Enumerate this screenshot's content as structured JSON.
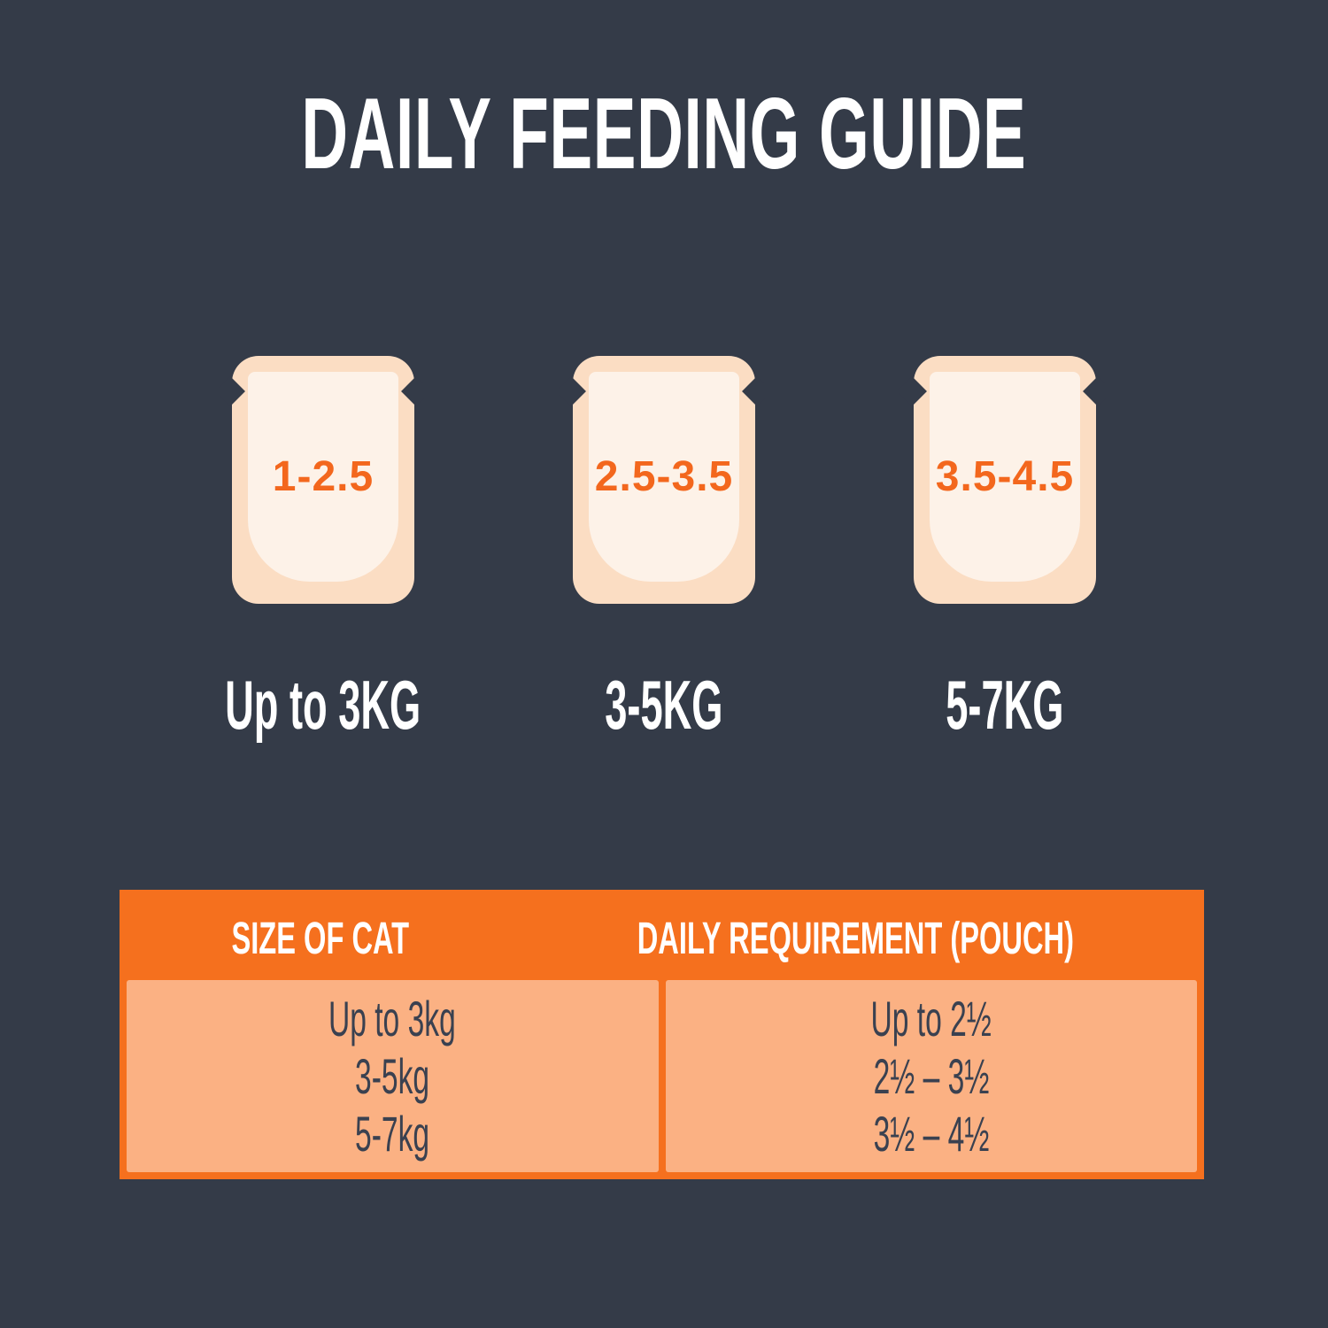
{
  "title": "DAILY FEEDING GUIDE",
  "colors": {
    "background": "#343B48",
    "orange": "#F5701E",
    "salmon": "#FBB183",
    "pouch_outer": "#FBDDC3",
    "pouch_inner": "#FDF2E8",
    "amount_orange": "#F3671D",
    "text_light": "#FFFFFF",
    "text_dark": "#3A4150"
  },
  "chart_data": {
    "type": "table",
    "title": "DAILY FEEDING GUIDE",
    "columns": [
      "SIZE OF CAT",
      "DAILY REQUIREMENT (POUCH)"
    ],
    "rows": [
      [
        "Up to 3kg",
        "Up to 2½"
      ],
      [
        "3-5kg",
        "2½ – 3½"
      ],
      [
        "5-7kg",
        "3½ – 4½"
      ]
    ],
    "pouch_annotations": [
      {
        "pouches_per_day": "1-2.5",
        "weight": "Up to 3KG"
      },
      {
        "pouches_per_day": "2.5-3.5",
        "weight": "3-5KG"
      },
      {
        "pouches_per_day": "3.5-4.5",
        "weight": "5-7KG"
      }
    ]
  }
}
